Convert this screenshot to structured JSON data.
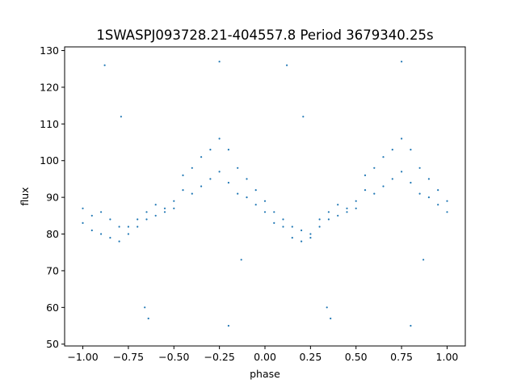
{
  "chart_data": {
    "type": "scatter",
    "title": "1SWASPJ093728.21-404557.8 Period 3679340.25s",
    "xlabel": "phase",
    "ylabel": "flux",
    "xlim": [
      -1.1,
      1.1
    ],
    "ylim": [
      49.5,
      131.0
    ],
    "x_ticks": [
      -1.0,
      -0.75,
      -0.5,
      -0.25,
      0.0,
      0.25,
      0.5,
      0.75,
      1.0
    ],
    "x_tick_labels": [
      "−1.00",
      "−0.75",
      "−0.50",
      "−0.25",
      "0.00",
      "0.25",
      "0.50",
      "0.75",
      "1.00"
    ],
    "y_ticks": [
      50,
      60,
      70,
      80,
      90,
      100,
      110,
      120,
      130
    ],
    "y_tick_labels": [
      "50",
      "60",
      "70",
      "80",
      "90",
      "100",
      "110",
      "120",
      "130"
    ],
    "grid": false,
    "legend": "none",
    "marker_color": "#1f77b4",
    "series": [
      {
        "x": [
          -1.0,
          -0.95,
          -0.9,
          -0.85,
          -0.8,
          -0.75,
          -0.7,
          -0.65,
          -0.6,
          -0.55,
          -0.5,
          -0.45,
          -0.4,
          -0.35,
          -0.3,
          -0.25,
          -0.2,
          -0.15,
          -0.1,
          -0.05,
          0.0,
          0.05,
          0.1,
          0.15,
          0.2,
          0.25,
          0.3,
          0.35,
          0.4,
          0.45,
          0.5,
          0.55,
          0.6,
          0.65,
          0.7,
          0.75,
          0.8,
          0.85,
          0.9,
          0.95,
          1.0
        ],
        "y": [
          87,
          85,
          86,
          84,
          82,
          82,
          84,
          86,
          88,
          87,
          89,
          96,
          98,
          101,
          103,
          106,
          103,
          98,
          95,
          92,
          89,
          86,
          84,
          82,
          81,
          80,
          84,
          86,
          88,
          87,
          89,
          96,
          98,
          101,
          103,
          106,
          103,
          98,
          95,
          92,
          89
        ]
      },
      {
        "x": [
          -1.0,
          -0.95,
          -0.9,
          -0.85,
          -0.8,
          -0.75,
          -0.7,
          -0.65,
          -0.6,
          -0.55,
          -0.5,
          -0.45,
          -0.4,
          -0.35,
          -0.3,
          -0.25,
          -0.2,
          -0.15,
          -0.1,
          -0.05,
          0.0,
          0.05,
          0.1,
          0.15,
          0.2,
          0.25,
          0.3,
          0.35,
          0.4,
          0.45,
          0.5,
          0.55,
          0.6,
          0.65,
          0.7,
          0.75,
          0.8,
          0.85,
          0.9,
          0.95,
          1.0
        ],
        "y": [
          83,
          81,
          80,
          79,
          78,
          80,
          82,
          84,
          85,
          86,
          87,
          92,
          91,
          93,
          95,
          97,
          94,
          91,
          90,
          88,
          86,
          83,
          82,
          79,
          78,
          79,
          82,
          84,
          85,
          86,
          87,
          92,
          91,
          93,
          95,
          97,
          94,
          91,
          90,
          88,
          86
        ]
      },
      {
        "x": [
          -0.88,
          -0.79,
          -0.66,
          -0.64,
          -0.25,
          -0.2,
          -0.13,
          0.12,
          0.21,
          0.34,
          0.36,
          0.75,
          0.8,
          0.87
        ],
        "y": [
          126,
          112,
          60,
          57,
          127,
          55,
          73,
          126,
          112,
          60,
          57,
          127,
          55,
          73
        ]
      }
    ]
  }
}
